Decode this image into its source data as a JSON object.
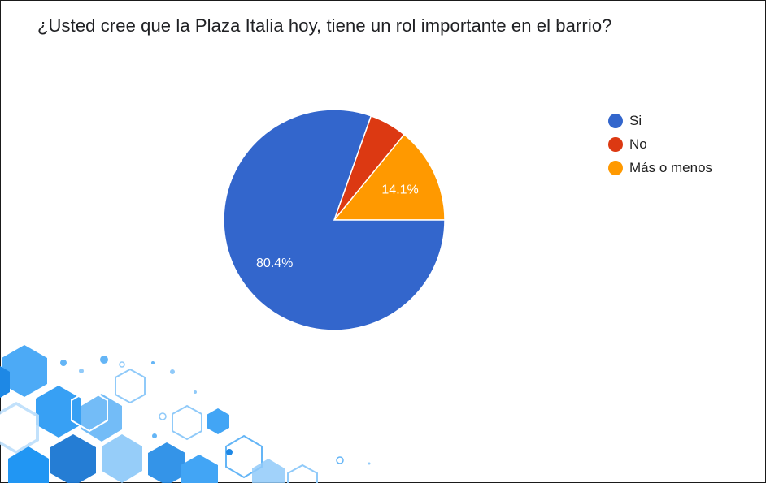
{
  "title": "¿Usted cree que la Plaza Italia hoy, tiene un rol importante en el barrio?",
  "chart_data": {
    "type": "pie",
    "title": "¿Usted cree que la Plaza Italia hoy, tiene un rol importante en el barrio?",
    "legend_position": "right",
    "slices": [
      {
        "label": "Si",
        "value": 80.4,
        "color": "#3366cc",
        "data_label": "80.4%"
      },
      {
        "label": "No",
        "value": 5.5,
        "color": "#dc3912",
        "data_label": ""
      },
      {
        "label": "Más o menos",
        "value": 14.1,
        "color": "#ff9900",
        "data_label": "14.1%"
      }
    ]
  },
  "colors": {
    "background": "#ffffff",
    "decor_blue": "#1e88e5",
    "decor_light": "#64b5f6"
  }
}
